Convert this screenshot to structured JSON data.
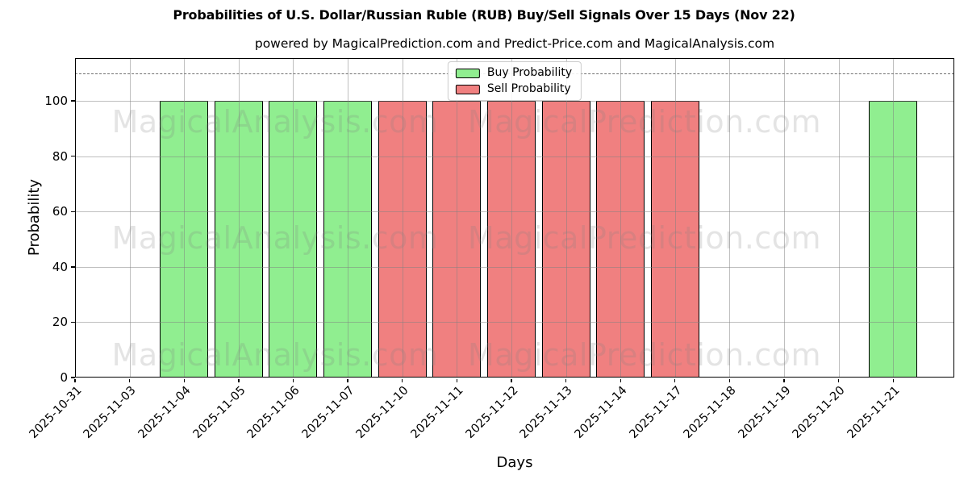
{
  "chart_data": {
    "type": "bar",
    "title": "Probabilities of U.S. Dollar/Russian Ruble (RUB) Buy/Sell Signals Over 15 Days (Nov 22)",
    "subtitle": "powered by MagicalPrediction.com and Predict-Price.com and MagicalAnalysis.com",
    "xlabel": "Days",
    "ylabel": "Probability",
    "ylim": [
      0,
      115.5
    ],
    "yticks": [
      0,
      20,
      40,
      60,
      80,
      100
    ],
    "grid": true,
    "legend_position": "upper center",
    "categories": [
      "2025-10-31",
      "2025-11-03",
      "2025-11-04",
      "2025-11-05",
      "2025-11-06",
      "2025-11-07",
      "2025-11-10",
      "2025-11-11",
      "2025-11-12",
      "2025-11-13",
      "2025-11-14",
      "2025-11-17",
      "2025-11-18",
      "2025-11-19",
      "2025-11-20",
      "2025-11-21"
    ],
    "series": [
      {
        "name": "Buy Probability",
        "color": "#90EE90",
        "values": [
          0,
          0,
          100,
          100,
          100,
          100,
          0,
          0,
          0,
          0,
          0,
          0,
          0,
          0,
          0,
          100
        ]
      },
      {
        "name": "Sell Probability",
        "color": "#F08080",
        "values": [
          0,
          0,
          0,
          0,
          0,
          0,
          100,
          100,
          100,
          100,
          100,
          100,
          0,
          0,
          0,
          0
        ]
      }
    ],
    "bar_edge_color": "#000000",
    "threshold_line": {
      "y": 110,
      "style": "dashed",
      "color": "#707070"
    },
    "watermarks": {
      "left": "MagicalAnalysis.com",
      "right": "MagicalPrediction.com"
    }
  }
}
